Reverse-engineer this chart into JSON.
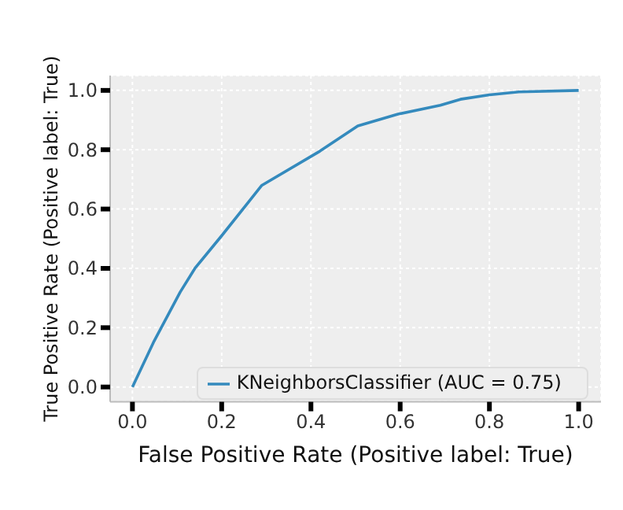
{
  "chart_data": {
    "type": "line",
    "xlabel": "False Positive Rate (Positive label: True)",
    "ylabel": "True Positive Rate (Positive label: True)",
    "x": [
      0,
      0.047,
      0.107,
      0.14,
      0.2,
      0.29,
      0.42,
      0.505,
      0.595,
      0.69,
      0.735,
      0.8,
      0.866,
      1.0
    ],
    "series": [
      {
        "name": "KNeighborsClassifier (AUC = 0.75)",
        "color": "#348abd",
        "values": [
          0,
          0.15,
          0.32,
          0.4,
          0.51,
          0.68,
          0.795,
          0.88,
          0.92,
          0.95,
          0.97,
          0.985,
          0.995,
          1.0
        ]
      }
    ],
    "xlim": [
      -0.05,
      1.05
    ],
    "ylim": [
      -0.05,
      1.05
    ],
    "xticks": [
      {
        "value": 0,
        "label": "0.0"
      },
      0.2,
      0.4,
      0.6,
      0.8,
      {
        "value": 1,
        "label": "1.0"
      }
    ],
    "yticks": [
      {
        "value": 0,
        "label": "0.0"
      },
      0.2,
      0.4,
      0.6,
      0.8,
      {
        "value": 1,
        "label": "1.0"
      }
    ],
    "grid": true,
    "legend": "bottom right",
    "marker": "none",
    "line_style": "solid"
  }
}
